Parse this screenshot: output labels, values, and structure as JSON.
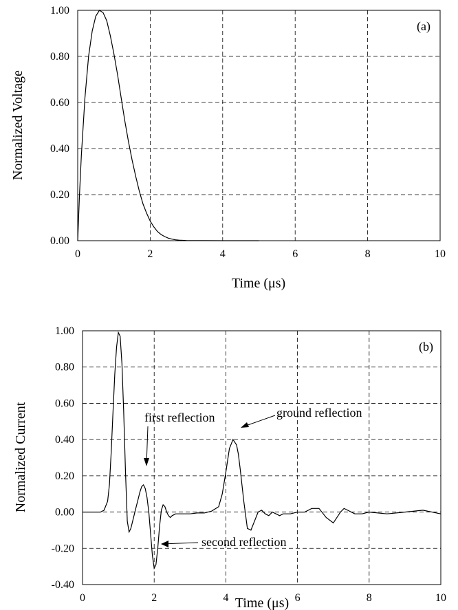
{
  "chart_data": [
    {
      "type": "line",
      "panel_label": "(a)",
      "xlabel": "Time (μs)",
      "ylabel": "Normalized Voltage",
      "xlim": [
        0,
        10
      ],
      "ylim": [
        0,
        1
      ],
      "x_ticks": [
        0,
        2,
        4,
        6,
        8,
        10
      ],
      "x_tick_labels": [
        "0",
        "2",
        "4",
        "6",
        "8",
        "10"
      ],
      "y_ticks": [
        0,
        0.2,
        0.4,
        0.6,
        0.8,
        1.0
      ],
      "y_tick_labels": [
        "0.00",
        "0.20",
        "0.40",
        "0.60",
        "0.80",
        "1.00"
      ],
      "grid": true,
      "series": [
        {
          "x": [
            0,
            0.05,
            0.1,
            0.2,
            0.3,
            0.4,
            0.5,
            0.6,
            0.7,
            0.8,
            0.9,
            1.0,
            1.1,
            1.2,
            1.3,
            1.4,
            1.5,
            1.6,
            1.7,
            1.8,
            1.9,
            2.0,
            2.1,
            2.2,
            2.3,
            2.4,
            2.5,
            2.6,
            2.7,
            2.8,
            3.0,
            3.5,
            4.0,
            4.5,
            5.0
          ],
          "y": [
            0,
            0.2,
            0.37,
            0.62,
            0.8,
            0.91,
            0.975,
            1.0,
            0.99,
            0.955,
            0.89,
            0.81,
            0.72,
            0.62,
            0.52,
            0.43,
            0.35,
            0.28,
            0.215,
            0.16,
            0.12,
            0.085,
            0.06,
            0.04,
            0.027,
            0.018,
            0.011,
            0.007,
            0.004,
            0.0025,
            0.001,
            0.0002,
            0,
            0,
            0
          ]
        }
      ]
    },
    {
      "type": "line",
      "panel_label": "(b)",
      "xlabel": "Time (μs)",
      "ylabel": "Normalized Current",
      "xlim": [
        0,
        10
      ],
      "ylim": [
        -0.4,
        1
      ],
      "x_ticks": [
        0,
        2,
        4,
        6,
        8,
        10
      ],
      "x_tick_labels": [
        "0",
        "2",
        "4",
        "6",
        "8",
        "10"
      ],
      "y_ticks": [
        -0.4,
        -0.2,
        0,
        0.2,
        0.4,
        0.6,
        0.8,
        1.0
      ],
      "y_tick_labels": [
        "-0.40",
        "-0.20",
        "0.00",
        "0.20",
        "0.40",
        "0.60",
        "0.80",
        "1.00"
      ],
      "grid": true,
      "series": [
        {
          "x": [
            0,
            0.5,
            0.6,
            0.7,
            0.75,
            0.8,
            0.85,
            0.9,
            0.95,
            1.0,
            1.05,
            1.1,
            1.15,
            1.2,
            1.25,
            1.3,
            1.35,
            1.4,
            1.45,
            1.5,
            1.55,
            1.6,
            1.65,
            1.7,
            1.75,
            1.8,
            1.85,
            1.9,
            1.95,
            2.0,
            2.05,
            2.1,
            2.15,
            2.2,
            2.25,
            2.3,
            2.35,
            2.4,
            2.45,
            2.5,
            2.6,
            2.7,
            2.8,
            2.9,
            3.0,
            3.2,
            3.4,
            3.6,
            3.8,
            3.9,
            4.0,
            4.1,
            4.2,
            4.3,
            4.35,
            4.4,
            4.5,
            4.6,
            4.7,
            4.8,
            4.9,
            5.0,
            5.1,
            5.2,
            5.3,
            5.4,
            5.5,
            5.6,
            5.8,
            6.0,
            6.2,
            6.4,
            6.6,
            6.8,
            7.0,
            7.2,
            7.3,
            7.4,
            7.6,
            7.8,
            8.0,
            8.5,
            9.0,
            9.5,
            10.0
          ],
          "y": [
            0,
            0.0,
            0.01,
            0.06,
            0.15,
            0.33,
            0.55,
            0.76,
            0.91,
            0.99,
            0.97,
            0.82,
            0.55,
            0.22,
            -0.05,
            -0.11,
            -0.09,
            -0.05,
            -0.01,
            0.03,
            0.07,
            0.11,
            0.14,
            0.15,
            0.13,
            0.08,
            0.0,
            -0.12,
            -0.24,
            -0.31,
            -0.29,
            -0.2,
            -0.08,
            0.01,
            0.04,
            0.03,
            0.0,
            -0.02,
            -0.03,
            -0.02,
            -0.01,
            -0.01,
            -0.01,
            -0.01,
            -0.01,
            -0.005,
            -0.005,
            0.005,
            0.03,
            0.1,
            0.22,
            0.35,
            0.4,
            0.37,
            0.32,
            0.24,
            0.06,
            -0.09,
            -0.1,
            -0.05,
            0.0,
            0.01,
            -0.01,
            -0.02,
            0.0,
            -0.01,
            -0.02,
            -0.01,
            -0.01,
            0.0,
            0.0,
            0.02,
            0.02,
            -0.03,
            -0.06,
            0.0,
            0.02,
            0.01,
            -0.01,
            -0.01,
            0.0,
            -0.01,
            0.0,
            0.01,
            -0.01
          ]
        }
      ],
      "annotations": [
        {
          "text": "first reflection",
          "x": 1.75,
          "y": 0.15
        },
        {
          "text": "ground reflection",
          "x": 4.35,
          "y": 0.4
        },
        {
          "text": "second reflection",
          "x": 2.05,
          "y": -0.31
        }
      ]
    }
  ]
}
